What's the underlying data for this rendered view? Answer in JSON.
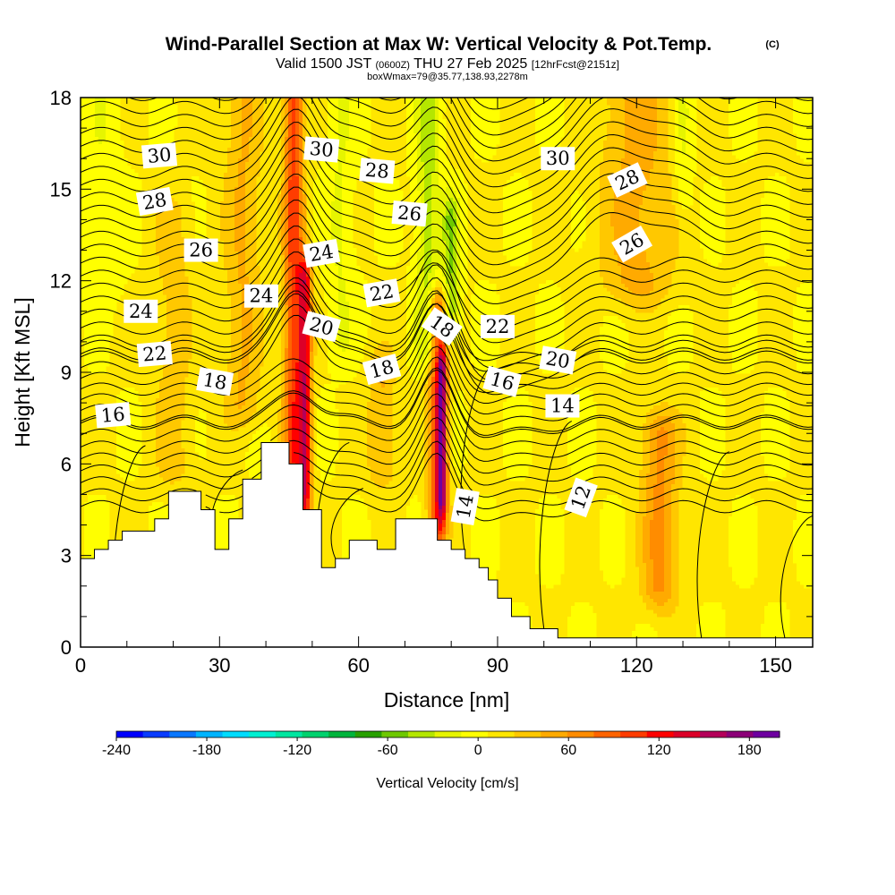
{
  "header": {
    "title": "Wind-Parallel Section at Max W: Vertical Velocity & Pot.Temp.",
    "copyright": "(C)",
    "valid_prefix": "Valid 1500 JST",
    "valid_utc": "(0600Z)",
    "valid_date": "THU 27 Feb 2025",
    "forecast": "[12hrFcst@2151z]",
    "box_info": "boxWmax=79@35.77,138.93,2278m"
  },
  "chart_data": {
    "type": "heatmap",
    "title": "Wind-Parallel Section at Max W: Vertical Velocity & Pot.Temp.",
    "xlabel": "Distance [nm]",
    "ylabel": "Height [Kft MSL]",
    "xlim": [
      0,
      158
    ],
    "ylim": [
      0,
      18
    ],
    "x_ticks": [
      0,
      30,
      60,
      90,
      120,
      150
    ],
    "y_ticks": [
      0,
      3,
      6,
      9,
      12,
      15,
      18
    ],
    "fill_variable": "Vertical Velocity [cm/s]",
    "contour_variable": "Potential temperature",
    "colorbar": {
      "label": "Vertical Velocity [cm/s]",
      "tick_labels": [
        "-240",
        "-180",
        "-120",
        "-60",
        "0",
        "60",
        "120",
        "180"
      ],
      "tick_values": [
        -240,
        -180,
        -120,
        -60,
        0,
        60,
        120,
        180
      ],
      "range": [
        -240,
        200
      ],
      "colors": [
        "#0000ff",
        "#0a3cff",
        "#0a78ff",
        "#00b4ff",
        "#00dcff",
        "#00f0d2",
        "#00e6a0",
        "#00d26e",
        "#00b43c",
        "#28a000",
        "#6ec800",
        "#b4e600",
        "#e6f500",
        "#ffff00",
        "#ffe600",
        "#ffc800",
        "#ffaa00",
        "#ff8c00",
        "#ff6400",
        "#ff3c00",
        "#ff0000",
        "#dc0028",
        "#b4005a",
        "#8c0078",
        "#6e00a0"
      ]
    },
    "terrain_profile": [
      [
        0,
        2.9
      ],
      [
        1,
        2.9
      ],
      [
        3,
        2.9
      ],
      [
        3,
        3.2
      ],
      [
        6,
        3.2
      ],
      [
        6,
        3.5
      ],
      [
        9,
        3.5
      ],
      [
        9,
        3.8
      ],
      [
        16,
        3.8
      ],
      [
        16,
        4.2
      ],
      [
        19,
        4.2
      ],
      [
        19,
        5.1
      ],
      [
        26,
        5.1
      ],
      [
        26,
        4.5
      ],
      [
        29,
        4.5
      ],
      [
        29,
        3.2
      ],
      [
        32,
        3.2
      ],
      [
        32,
        4.2
      ],
      [
        35,
        4.2
      ],
      [
        35,
        5.5
      ],
      [
        39,
        5.5
      ],
      [
        39,
        6.7
      ],
      [
        45,
        6.7
      ],
      [
        45,
        6.0
      ],
      [
        48,
        6.0
      ],
      [
        48,
        4.5
      ],
      [
        52,
        4.5
      ],
      [
        52,
        2.6
      ],
      [
        55,
        2.6
      ],
      [
        55,
        2.9
      ],
      [
        58,
        2.9
      ],
      [
        58,
        3.5
      ],
      [
        64,
        3.5
      ],
      [
        64,
        3.2
      ],
      [
        68,
        3.2
      ],
      [
        68,
        4.2
      ],
      [
        77,
        4.2
      ],
      [
        77,
        3.5
      ],
      [
        80,
        3.5
      ],
      [
        80,
        3.2
      ],
      [
        83,
        3.2
      ],
      [
        83,
        2.9
      ],
      [
        86,
        2.9
      ],
      [
        86,
        2.6
      ],
      [
        88,
        2.6
      ],
      [
        88,
        2.2
      ],
      [
        90,
        2.2
      ],
      [
        90,
        1.6
      ],
      [
        93,
        1.6
      ],
      [
        93,
        1.0
      ],
      [
        97,
        1.0
      ],
      [
        97,
        0.6
      ],
      [
        103,
        0.6
      ],
      [
        103,
        0.3
      ],
      [
        112,
        0.3
      ],
      [
        158,
        0.3
      ]
    ],
    "velocity_features": [
      {
        "x": 46,
        "ymin": 4,
        "ymax": 18,
        "w": 95,
        "half_width_nm": 2.2
      },
      {
        "x": 48.5,
        "ymin": 5,
        "ymax": 12,
        "w": 110,
        "half_width_nm": 1.4
      },
      {
        "x": 77,
        "ymin": 4,
        "ymax": 11,
        "w": 90,
        "half_width_nm": 2.0
      },
      {
        "x": 78,
        "ymin": 5,
        "ymax": 9,
        "w": 120,
        "half_width_nm": 1.0
      },
      {
        "x": 125,
        "ymin": 2,
        "ymax": 7,
        "w": 55,
        "half_width_nm": 4
      },
      {
        "x": 35,
        "ymin": 8,
        "ymax": 18,
        "w": 35,
        "half_width_nm": 4
      },
      {
        "x": 20,
        "ymin": 6,
        "ymax": 14,
        "w": 25,
        "half_width_nm": 4
      },
      {
        "x": 65,
        "ymin": 6,
        "ymax": 9,
        "w": 35,
        "half_width_nm": 3
      },
      {
        "x": 120,
        "ymin": 12,
        "ymax": 18,
        "w": 40,
        "half_width_nm": 8
      },
      {
        "x": 75,
        "ymin": 10,
        "ymax": 18,
        "w": -45,
        "half_width_nm": 2.5
      },
      {
        "x": 80,
        "ymin": 11,
        "ymax": 14,
        "w": -55,
        "half_width_nm": 1.8
      },
      {
        "x": 56,
        "ymin": 10,
        "ymax": 18,
        "w": -20,
        "half_width_nm": 3
      },
      {
        "x": 130,
        "ymin": 15,
        "ymax": 18,
        "w": -25,
        "half_width_nm": 2
      },
      {
        "x": 5,
        "ymin": 12,
        "ymax": 18,
        "w": -15,
        "half_width_nm": 4
      }
    ],
    "contour_labels": [
      {
        "text": "30",
        "x": 17,
        "y": 16.1,
        "angle": -5
      },
      {
        "text": "30",
        "x": 52,
        "y": 16.3,
        "angle": 5
      },
      {
        "text": "30",
        "x": 103,
        "y": 16.0,
        "angle": 0
      },
      {
        "text": "28",
        "x": 16,
        "y": 14.6,
        "angle": -10
      },
      {
        "text": "28",
        "x": 64,
        "y": 15.6,
        "angle": 5
      },
      {
        "text": "28",
        "x": 118,
        "y": 15.3,
        "angle": -25
      },
      {
        "text": "26",
        "x": 26,
        "y": 13.0,
        "angle": 0
      },
      {
        "text": "26",
        "x": 71,
        "y": 14.2,
        "angle": 5
      },
      {
        "text": "26",
        "x": 119,
        "y": 13.2,
        "angle": -30
      },
      {
        "text": "24",
        "x": 13,
        "y": 11.0,
        "angle": 0
      },
      {
        "text": "24",
        "x": 39,
        "y": 11.5,
        "angle": 0
      },
      {
        "text": "24",
        "x": 52,
        "y": 12.9,
        "angle": -10
      },
      {
        "text": "22",
        "x": 16,
        "y": 9.6,
        "angle": -5
      },
      {
        "text": "22",
        "x": 65,
        "y": 11.6,
        "angle": -10
      },
      {
        "text": "22",
        "x": 90,
        "y": 10.5,
        "angle": 0
      },
      {
        "text": "20",
        "x": 52,
        "y": 10.5,
        "angle": 15
      },
      {
        "text": "20",
        "x": 103,
        "y": 9.4,
        "angle": 10
      },
      {
        "text": "18",
        "x": 29,
        "y": 8.7,
        "angle": 10
      },
      {
        "text": "18",
        "x": 65,
        "y": 9.1,
        "angle": -15
      },
      {
        "text": "18",
        "x": 78,
        "y": 10.5,
        "angle": 35
      },
      {
        "text": "16",
        "x": 7,
        "y": 7.6,
        "angle": -5
      },
      {
        "text": "16",
        "x": 91,
        "y": 8.7,
        "angle": 15
      },
      {
        "text": "14",
        "x": 104,
        "y": 7.9,
        "angle": 0
      },
      {
        "text": "14",
        "x": 83,
        "y": 4.6,
        "angle": -80
      },
      {
        "text": "12",
        "x": 108,
        "y": 4.9,
        "angle": -70
      }
    ],
    "grid": false,
    "legend": "colorbar-bottom"
  }
}
